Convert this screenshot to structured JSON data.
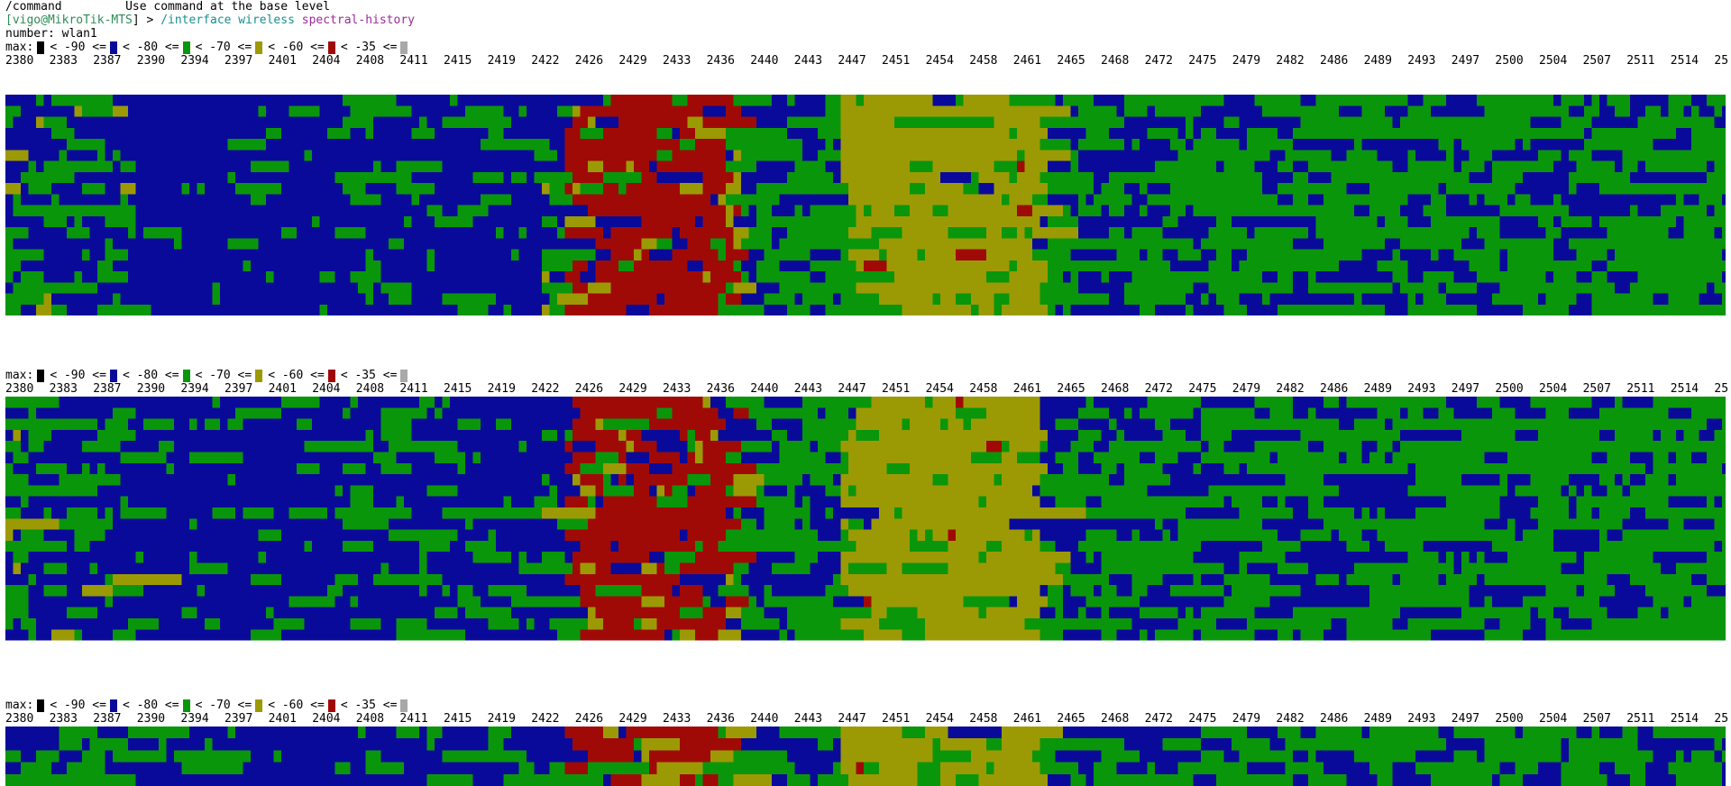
{
  "terminal": {
    "command_hint_path": "/command",
    "command_hint_text": "Use command at the base level",
    "prompt_open": "[",
    "prompt_user": "vigo@MikroTik-MTS",
    "prompt_close": "] > ",
    "prompt_path": "/interface wireless",
    "prompt_command": "spectral-history",
    "number_label": "number: wlan1"
  },
  "legend": {
    "prefix": "max:",
    "items": [
      {
        "color": "#000000",
        "text": "< -90 <="
      },
      {
        "color": "#0a0a9a",
        "text": "< -80 <="
      },
      {
        "color": "#0a960a",
        "text": "< -70 <="
      },
      {
        "color": "#9c9a04",
        "text": "< -60 <="
      },
      {
        "color": "#a00a06",
        "text": "< -35 <="
      },
      {
        "color": "#a8a8a8",
        "text": ""
      }
    ]
  },
  "frequency_axis": {
    "labels": [
      "2380",
      "2383",
      "2387",
      "2390",
      "2394",
      "2397",
      "2401",
      "2404",
      "2408",
      "2411",
      "2415",
      "2419",
      "2422",
      "2426",
      "2429",
      "2433",
      "2436",
      "2440",
      "2443",
      "2447",
      "2451",
      "2454",
      "2458",
      "2461",
      "2465",
      "2468",
      "2472",
      "2475",
      "2479",
      "2482",
      "2486",
      "2489",
      "2493",
      "2497",
      "2500",
      "2504",
      "2507",
      "2511",
      "2514",
      "25"
    ]
  },
  "colors": {
    "below_-90": "#000000",
    "-90_to_-80": "#0a0a9a",
    "-80_to_-70": "#0a960a",
    "-70_to_-60": "#9c9a04",
    "-60_to_-35": "#a00a06",
    "above_-35": "#a8a8a8"
  }
}
